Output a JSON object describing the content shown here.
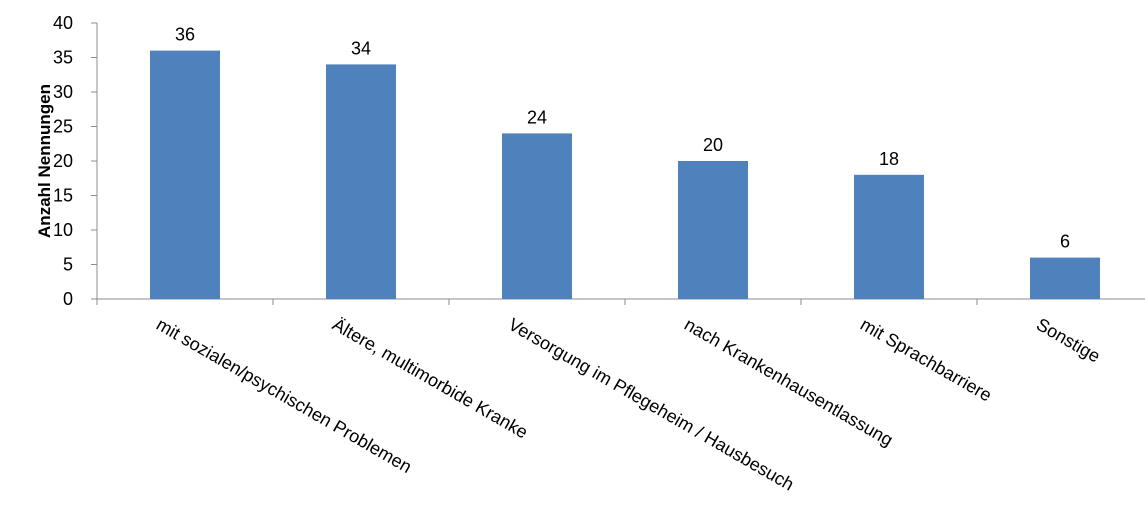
{
  "chart_data": {
    "type": "bar",
    "categories": [
      "mit sozialen/psychischen Problemen",
      "Ältere, multimorbide Kranke",
      "Versorgung im Pflegeheim / Hausbesuch",
      "nach Krankenhausentlassung",
      "mit Sprachbarriere",
      "Sonstige"
    ],
    "values": [
      36,
      34,
      24,
      20,
      18,
      6
    ],
    "data_labels": [
      "36",
      "34",
      "24",
      "20",
      "18",
      "6"
    ],
    "title": "",
    "xlabel": "",
    "ylabel": "Anzahl Nennungen",
    "ylim": [
      0,
      40
    ],
    "yticks": [
      0,
      5,
      10,
      15,
      20,
      25,
      30,
      35,
      40
    ],
    "grid": false,
    "legend": "none",
    "colors": {
      "bar": "#4f81bd",
      "axis": "#8c8c8c"
    }
  }
}
